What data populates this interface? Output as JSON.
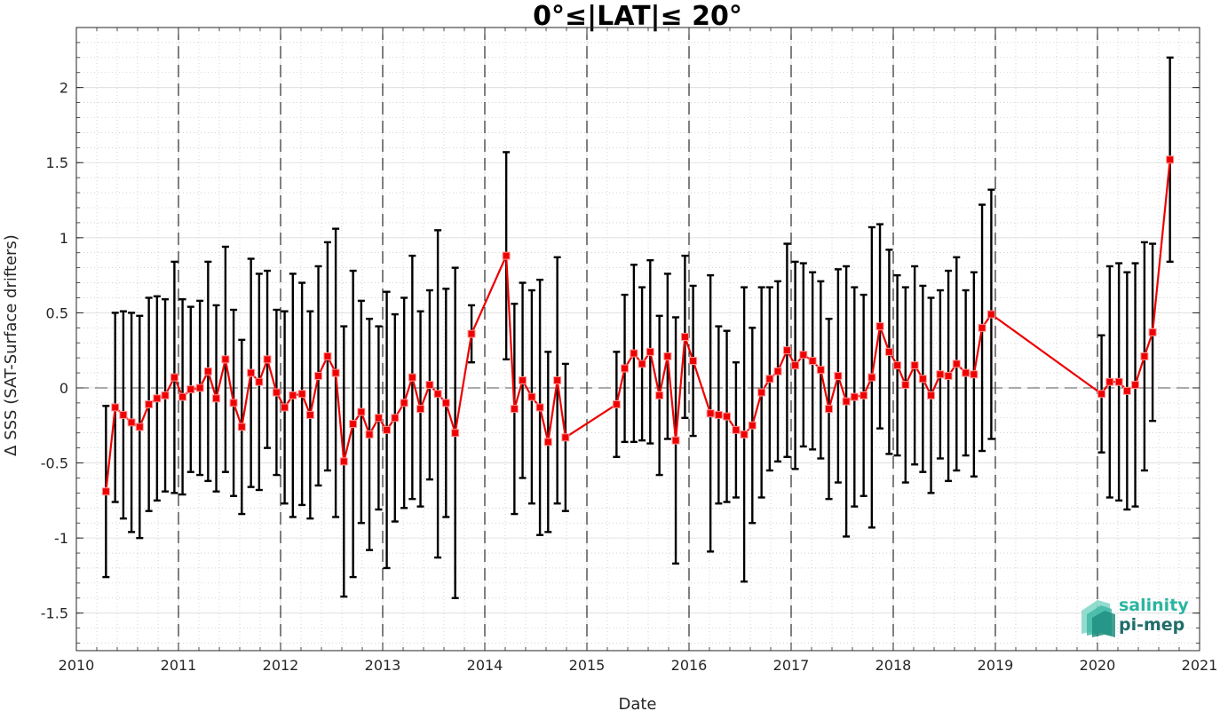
{
  "chart_data": {
    "type": "line",
    "title": "0°≤|LAT|≤ 20°",
    "xlabel": "Date",
    "ylabel": "Δ SSS (SAT-Surface drifters)",
    "xlim": [
      2010,
      2021
    ],
    "ylim": [
      -1.75,
      2.4
    ],
    "x_ticks": [
      2010,
      2011,
      2012,
      2013,
      2014,
      2015,
      2016,
      2017,
      2018,
      2019,
      2020,
      2021
    ],
    "x_tick_labels": [
      "2010",
      "2011",
      "2012",
      "2013",
      "2014",
      "2015",
      "2016",
      "2017",
      "2018",
      "2019",
      "2020",
      "2021"
    ],
    "y_ticks": [
      -1.5,
      -1,
      -0.5,
      0,
      0.5,
      1,
      1.5,
      2
    ],
    "y_tick_labels": [
      "-1.5",
      "-1",
      "-0.5",
      "0",
      "0.5",
      "1",
      "1.5",
      "2"
    ],
    "year_boundaries": [
      2011,
      2012,
      2013,
      2014,
      2015,
      2016,
      2017,
      2018,
      2019,
      2020
    ],
    "zero_line": 0,
    "grid": true,
    "minor_grid": true,
    "colors": {
      "line": "#ee0000",
      "marker": "#ee0000",
      "errorbar": "#000000",
      "zero_line": "#555555",
      "year_lines": "#000000"
    },
    "series": [
      {
        "points": [
          {
            "x": 2010.29,
            "y": -0.69,
            "err": 0.57
          },
          {
            "x": 2010.38,
            "y": -0.13,
            "err": 0.63
          },
          {
            "x": 2010.46,
            "y": -0.18,
            "err": 0.69
          },
          {
            "x": 2010.54,
            "y": -0.23,
            "err": 0.73
          },
          {
            "x": 2010.62,
            "y": -0.26,
            "err": 0.74
          },
          {
            "x": 2010.71,
            "y": -0.11,
            "err": 0.71
          },
          {
            "x": 2010.79,
            "y": -0.07,
            "err": 0.68
          },
          {
            "x": 2010.87,
            "y": -0.05,
            "err": 0.64
          },
          {
            "x": 2010.96,
            "y": 0.07,
            "err": 0.77
          },
          {
            "x": 2011.04,
            "y": -0.06,
            "err": 0.65
          },
          {
            "x": 2011.12,
            "y": -0.01,
            "err": 0.55
          },
          {
            "x": 2011.21,
            "y": 0.0,
            "err": 0.58
          },
          {
            "x": 2011.29,
            "y": 0.11,
            "err": 0.73
          },
          {
            "x": 2011.37,
            "y": -0.07,
            "err": 0.62
          },
          {
            "x": 2011.46,
            "y": 0.19,
            "err": 0.75
          },
          {
            "x": 2011.54,
            "y": -0.1,
            "err": 0.62
          },
          {
            "x": 2011.62,
            "y": -0.26,
            "err": 0.58
          },
          {
            "x": 2011.71,
            "y": 0.1,
            "err": 0.76
          },
          {
            "x": 2011.79,
            "y": 0.04,
            "err": 0.72
          },
          {
            "x": 2011.87,
            "y": 0.19,
            "err": 0.59
          },
          {
            "x": 2011.96,
            "y": -0.03,
            "err": 0.55
          },
          {
            "x": 2012.04,
            "y": -0.13,
            "err": 0.64
          },
          {
            "x": 2012.12,
            "y": -0.05,
            "err": 0.81
          },
          {
            "x": 2012.21,
            "y": -0.04,
            "err": 0.74
          },
          {
            "x": 2012.29,
            "y": -0.18,
            "err": 0.69
          },
          {
            "x": 2012.37,
            "y": 0.08,
            "err": 0.73
          },
          {
            "x": 2012.46,
            "y": 0.21,
            "err": 0.76
          },
          {
            "x": 2012.54,
            "y": 0.1,
            "err": 0.96
          },
          {
            "x": 2012.62,
            "y": -0.49,
            "err": 0.9
          },
          {
            "x": 2012.71,
            "y": -0.24,
            "err": 1.02
          },
          {
            "x": 2012.79,
            "y": -0.16,
            "err": 0.74
          },
          {
            "x": 2012.87,
            "y": -0.31,
            "err": 0.77
          },
          {
            "x": 2012.96,
            "y": -0.2,
            "err": 0.61
          },
          {
            "x": 2013.04,
            "y": -0.28,
            "err": 0.92
          },
          {
            "x": 2013.12,
            "y": -0.2,
            "err": 0.69
          },
          {
            "x": 2013.21,
            "y": -0.1,
            "err": 0.7
          },
          {
            "x": 2013.29,
            "y": 0.07,
            "err": 0.81
          },
          {
            "x": 2013.37,
            "y": -0.14,
            "err": 0.65
          },
          {
            "x": 2013.46,
            "y": 0.02,
            "err": 0.63
          },
          {
            "x": 2013.54,
            "y": -0.04,
            "err": 1.09
          },
          {
            "x": 2013.62,
            "y": -0.1,
            "err": 0.76
          },
          {
            "x": 2013.71,
            "y": -0.3,
            "err": 1.1
          },
          {
            "x": 2013.87,
            "y": 0.36,
            "err": 0.19
          },
          {
            "x": 2014.21,
            "y": 0.88,
            "err": 0.69
          },
          {
            "x": 2014.29,
            "y": -0.14,
            "err": 0.7
          },
          {
            "x": 2014.37,
            "y": 0.05,
            "err": 0.65
          },
          {
            "x": 2014.46,
            "y": -0.06,
            "err": 0.71
          },
          {
            "x": 2014.54,
            "y": -0.13,
            "err": 0.85
          },
          {
            "x": 2014.62,
            "y": -0.36,
            "err": 0.6
          },
          {
            "x": 2014.71,
            "y": 0.05,
            "err": 0.82
          },
          {
            "x": 2014.79,
            "y": -0.33,
            "err": 0.49
          },
          {
            "x": 2015.29,
            "y": -0.11,
            "err": 0.35
          },
          {
            "x": 2015.37,
            "y": 0.13,
            "err": 0.49
          },
          {
            "x": 2015.46,
            "y": 0.23,
            "err": 0.59
          },
          {
            "x": 2015.54,
            "y": 0.16,
            "err": 0.51
          },
          {
            "x": 2015.62,
            "y": 0.24,
            "err": 0.61
          },
          {
            "x": 2015.71,
            "y": -0.05,
            "err": 0.53
          },
          {
            "x": 2015.79,
            "y": 0.21,
            "err": 0.55
          },
          {
            "x": 2015.87,
            "y": -0.35,
            "err": 0.82
          },
          {
            "x": 2015.96,
            "y": 0.34,
            "err": 0.54
          },
          {
            "x": 2016.04,
            "y": 0.18,
            "err": 0.5
          },
          {
            "x": 2016.21,
            "y": -0.17,
            "err": 0.92
          },
          {
            "x": 2016.29,
            "y": -0.18,
            "err": 0.59
          },
          {
            "x": 2016.37,
            "y": -0.19,
            "err": 0.57
          },
          {
            "x": 2016.46,
            "y": -0.28,
            "err": 0.45
          },
          {
            "x": 2016.54,
            "y": -0.31,
            "err": 0.98
          },
          {
            "x": 2016.62,
            "y": -0.25,
            "err": 0.65
          },
          {
            "x": 2016.71,
            "y": -0.03,
            "err": 0.7
          },
          {
            "x": 2016.79,
            "y": 0.06,
            "err": 0.61
          },
          {
            "x": 2016.87,
            "y": 0.11,
            "err": 0.6
          },
          {
            "x": 2016.96,
            "y": 0.25,
            "err": 0.71
          },
          {
            "x": 2017.04,
            "y": 0.15,
            "err": 0.69
          },
          {
            "x": 2017.12,
            "y": 0.22,
            "err": 0.61
          },
          {
            "x": 2017.21,
            "y": 0.18,
            "err": 0.59
          },
          {
            "x": 2017.29,
            "y": 0.12,
            "err": 0.59
          },
          {
            "x": 2017.37,
            "y": -0.14,
            "err": 0.6
          },
          {
            "x": 2017.46,
            "y": 0.08,
            "err": 0.71
          },
          {
            "x": 2017.54,
            "y": -0.09,
            "err": 0.9
          },
          {
            "x": 2017.62,
            "y": -0.06,
            "err": 0.73
          },
          {
            "x": 2017.71,
            "y": -0.05,
            "err": 0.67
          },
          {
            "x": 2017.79,
            "y": 0.07,
            "err": 1.0
          },
          {
            "x": 2017.87,
            "y": 0.41,
            "err": 0.68
          },
          {
            "x": 2017.96,
            "y": 0.24,
            "err": 0.68
          },
          {
            "x": 2018.04,
            "y": 0.15,
            "err": 0.6
          },
          {
            "x": 2018.12,
            "y": 0.02,
            "err": 0.65
          },
          {
            "x": 2018.21,
            "y": 0.15,
            "err": 0.66
          },
          {
            "x": 2018.29,
            "y": 0.06,
            "err": 0.62
          },
          {
            "x": 2018.37,
            "y": -0.05,
            "err": 0.65
          },
          {
            "x": 2018.46,
            "y": 0.09,
            "err": 0.56
          },
          {
            "x": 2018.54,
            "y": 0.08,
            "err": 0.7
          },
          {
            "x": 2018.62,
            "y": 0.16,
            "err": 0.71
          },
          {
            "x": 2018.71,
            "y": 0.1,
            "err": 0.55
          },
          {
            "x": 2018.79,
            "y": 0.09,
            "err": 0.68
          },
          {
            "x": 2018.87,
            "y": 0.4,
            "err": 0.82
          },
          {
            "x": 2018.96,
            "y": 0.49,
            "err": 0.83
          },
          {
            "x": 2020.04,
            "y": -0.04,
            "err": 0.39
          },
          {
            "x": 2020.12,
            "y": 0.04,
            "err": 0.77
          },
          {
            "x": 2020.21,
            "y": 0.04,
            "err": 0.79
          },
          {
            "x": 2020.29,
            "y": -0.02,
            "err": 0.79
          },
          {
            "x": 2020.37,
            "y": 0.02,
            "err": 0.81
          },
          {
            "x": 2020.46,
            "y": 0.21,
            "err": 0.76
          },
          {
            "x": 2020.54,
            "y": 0.37,
            "err": 0.59
          },
          {
            "x": 2020.71,
            "y": 1.52,
            "err": 0.68
          }
        ]
      }
    ]
  },
  "logo": {
    "line1": "salinity",
    "line2": "pi-mep",
    "color1": "#2bb5a0",
    "color2": "#1f6e6a"
  }
}
